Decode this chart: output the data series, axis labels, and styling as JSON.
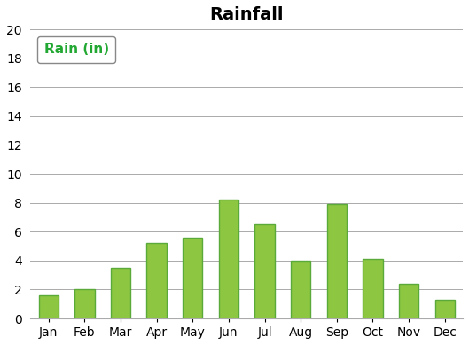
{
  "title": "Rainfall",
  "categories": [
    "Jan",
    "Feb",
    "Mar",
    "Apr",
    "May",
    "Jun",
    "Jul",
    "Aug",
    "Sep",
    "Oct",
    "Nov",
    "Dec"
  ],
  "values": [
    1.6,
    2.0,
    3.5,
    5.2,
    5.6,
    8.2,
    6.5,
    4.0,
    7.9,
    4.1,
    2.4,
    1.3
  ],
  "bar_color": "#8DC641",
  "bar_edge_color": "#5aaa3a",
  "legend_label": "Rain (in)",
  "legend_text_color": "#22a832",
  "ylim": [
    0,
    20
  ],
  "yticks": [
    0,
    2,
    4,
    6,
    8,
    10,
    12,
    14,
    16,
    18,
    20
  ],
  "title_fontsize": 14,
  "tick_fontsize": 10,
  "legend_fontsize": 11,
  "background_color": "#ffffff",
  "grid_color": "#aaaaaa"
}
